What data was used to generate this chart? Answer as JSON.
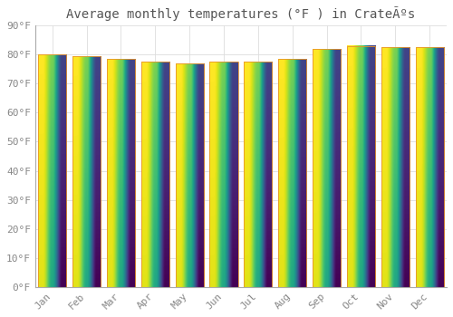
{
  "title": "Average monthly temperatures (°F ) in CrateÃºs",
  "months": [
    "Jan",
    "Feb",
    "Mar",
    "Apr",
    "May",
    "Jun",
    "Jul",
    "Aug",
    "Sep",
    "Oct",
    "Nov",
    "Dec"
  ],
  "values": [
    80,
    79.5,
    78.5,
    77.5,
    77,
    77.5,
    77.5,
    78.5,
    82,
    83,
    82.5,
    82.5
  ],
  "bar_color_bottom": "#F5A623",
  "bar_color_top": "#FFD966",
  "bar_edge_color": "#E8942A",
  "background_color": "#FFFFFF",
  "plot_bg_color": "#FFFFFF",
  "grid_color": "#DDDDDD",
  "ylim": [
    0,
    90
  ],
  "yticks": [
    0,
    10,
    20,
    30,
    40,
    50,
    60,
    70,
    80,
    90
  ],
  "title_fontsize": 10,
  "tick_fontsize": 8,
  "tick_color": "#888888",
  "title_color": "#555555",
  "bar_width": 0.82
}
